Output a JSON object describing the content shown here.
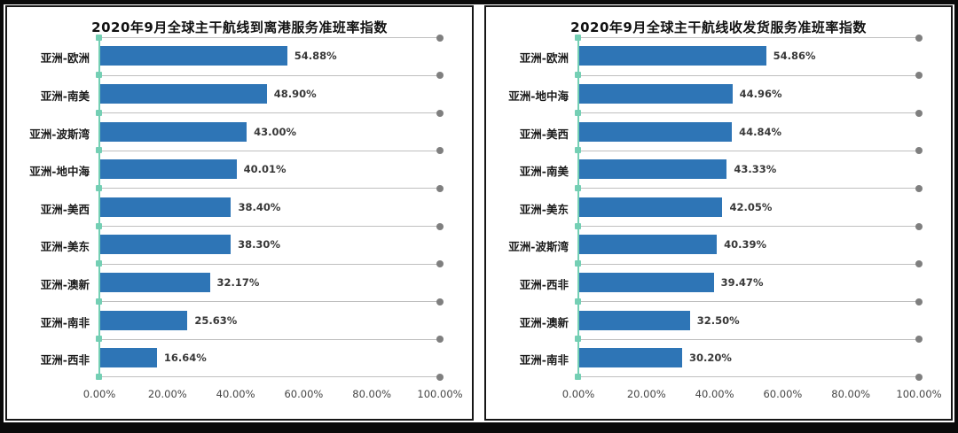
{
  "colors": {
    "bar": "#2e75b6",
    "axis": "#74cfb4",
    "gridline": "#bfbfbf",
    "gridline_dot": "#7f7f7f",
    "card_border": "#161616",
    "frame": "#0a0a0a",
    "title_text": "#111111",
    "label_text": "#1a1a1a",
    "value_text": "#383838",
    "tick_text": "#454545"
  },
  "chart_data": [
    {
      "type": "bar",
      "orientation": "horizontal",
      "title": "2020年9月全球主干航线到离港服务准班率指数",
      "categories": [
        "亚洲-欧洲",
        "亚洲-南美",
        "亚洲-波斯湾",
        "亚洲-地中海",
        "亚洲-美西",
        "亚洲-美东",
        "亚洲-澳新",
        "亚洲-南非",
        "亚洲-西非"
      ],
      "values": [
        54.88,
        48.9,
        43.0,
        40.01,
        38.4,
        38.3,
        32.17,
        25.63,
        16.64
      ],
      "value_labels": [
        "54.88%",
        "48.90%",
        "43.00%",
        "40.01%",
        "38.40%",
        "38.30%",
        "32.17%",
        "25.63%",
        "16.64%"
      ],
      "xlim": [
        0,
        100
      ],
      "x_ticks": [
        "0.00%",
        "20.00%",
        "40.00%",
        "60.00%",
        "80.00%",
        "100.00%"
      ],
      "grid": "horizontal-lines-with-end-dots",
      "legend": "none"
    },
    {
      "type": "bar",
      "orientation": "horizontal",
      "title": "2020年9月全球主干航线收发货服务准班率指数",
      "categories": [
        "亚洲-欧洲",
        "亚洲-地中海",
        "亚洲-美西",
        "亚洲-南美",
        "亚洲-美东",
        "亚洲-波斯湾",
        "亚洲-西非",
        "亚洲-澳新",
        "亚洲-南非"
      ],
      "values": [
        54.86,
        44.96,
        44.84,
        43.33,
        42.05,
        40.39,
        39.47,
        32.5,
        30.2
      ],
      "value_labels": [
        "54.86%",
        "44.96%",
        "44.84%",
        "43.33%",
        "42.05%",
        "40.39%",
        "39.47%",
        "32.50%",
        "30.20%"
      ],
      "xlim": [
        0,
        100
      ],
      "x_ticks": [
        "0.00%",
        "20.00%",
        "40.00%",
        "60.00%",
        "80.00%",
        "100.00%"
      ],
      "grid": "horizontal-lines-with-end-dots",
      "legend": "none"
    }
  ]
}
